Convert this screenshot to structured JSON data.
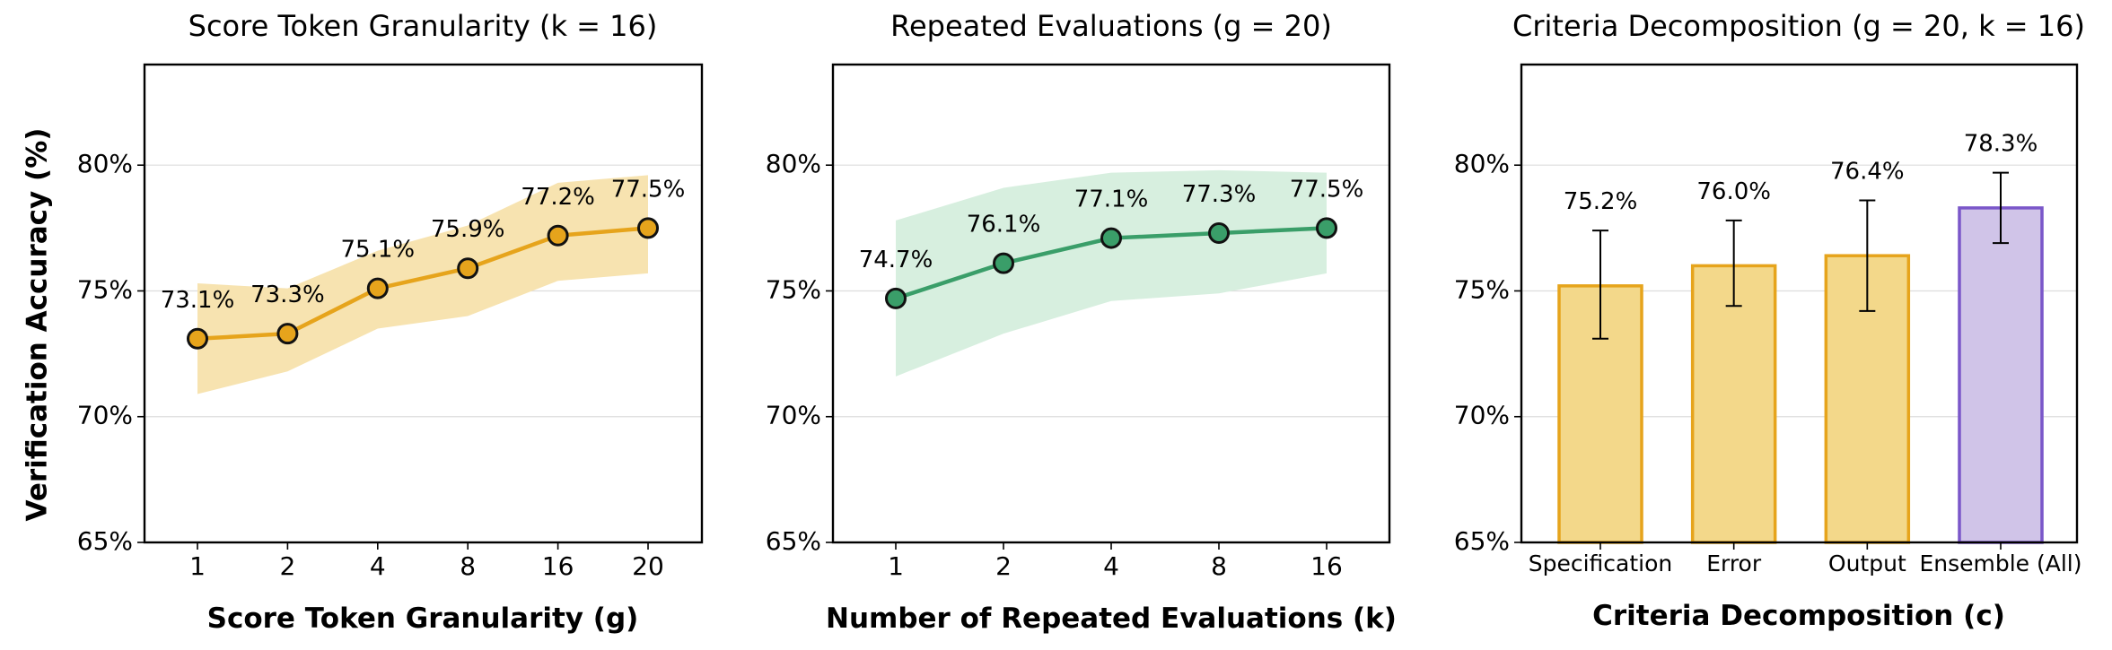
{
  "ylabel": "Verification Accuracy (%)",
  "chart_data": [
    {
      "type": "line",
      "title": "Score Token Granularity  (k = 16)",
      "xlabel": "Score Token Granularity (g)",
      "categories": [
        "1",
        "2",
        "4",
        "8",
        "16",
        "20"
      ],
      "values": [
        73.1,
        73.3,
        75.1,
        75.9,
        77.2,
        77.5
      ],
      "labels": [
        "73.1%",
        "73.3%",
        "75.1%",
        "75.9%",
        "77.2%",
        "77.5%"
      ],
      "band_low": [
        70.9,
        71.8,
        73.5,
        74.0,
        75.4,
        75.7
      ],
      "band_high": [
        75.3,
        75.1,
        76.6,
        77.6,
        79.3,
        79.6
      ],
      "ylim": [
        65,
        84
      ],
      "yticks": [
        65,
        70,
        75,
        80
      ],
      "ytick_labels": [
        "65%",
        "70%",
        "75%",
        "80%"
      ],
      "grid": true,
      "line_color": "#e6a41c",
      "band_color": "#f7e3b0"
    },
    {
      "type": "line",
      "title": "Repeated Evaluations  (g = 20)",
      "xlabel": "Number of Repeated Evaluations (k)",
      "categories": [
        "1",
        "2",
        "4",
        "8",
        "16"
      ],
      "values": [
        74.7,
        76.1,
        77.1,
        77.3,
        77.5
      ],
      "labels": [
        "74.7%",
        "76.1%",
        "77.1%",
        "77.3%",
        "77.5%"
      ],
      "band_low": [
        71.6,
        73.3,
        74.6,
        74.9,
        75.7
      ],
      "band_high": [
        77.8,
        79.1,
        79.7,
        79.8,
        79.7
      ],
      "ylim": [
        65,
        84
      ],
      "yticks": [
        65,
        70,
        75,
        80
      ],
      "ytick_labels": [
        "65%",
        "70%",
        "75%",
        "80%"
      ],
      "grid": true,
      "line_color": "#3a9e69",
      "band_color": "#d7efdf"
    },
    {
      "type": "bar",
      "title": "Criteria Decomposition  (g = 20, k = 16)",
      "xlabel": "Criteria Decomposition (c)",
      "categories": [
        "Specification",
        "Error",
        "Output",
        "Ensemble (All)"
      ],
      "values": [
        75.2,
        76.0,
        76.4,
        78.3
      ],
      "labels": [
        "75.2%",
        "76.0%",
        "76.4%",
        "78.3%"
      ],
      "err_low": [
        73.1,
        74.4,
        74.2,
        76.9
      ],
      "err_high": [
        77.4,
        77.8,
        78.6,
        79.7
      ],
      "ylim": [
        65,
        84
      ],
      "yticks": [
        65,
        70,
        75,
        80
      ],
      "ytick_labels": [
        "65%",
        "70%",
        "75%",
        "80%"
      ],
      "grid": true,
      "bar_fills": [
        "#f3d88a",
        "#f3d88a",
        "#f3d88a",
        "#d0c4e8"
      ],
      "bar_edges": [
        "#e6a41c",
        "#e6a41c",
        "#e6a41c",
        "#7a57c9"
      ]
    }
  ]
}
